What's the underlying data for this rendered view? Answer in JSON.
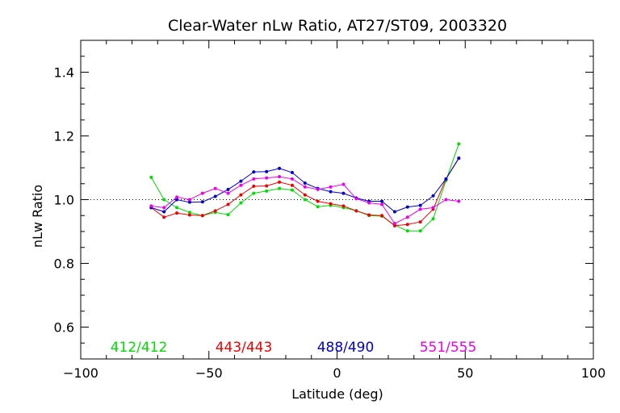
{
  "chart_data": {
    "type": "line",
    "title": "Clear-Water nLw Ratio, AT27/ST09, 2003320",
    "xlabel": "Latitude (deg)",
    "ylabel": "nLw Ratio",
    "xlim": [
      -100,
      100
    ],
    "ylim": [
      0.5,
      1.5
    ],
    "xticks": [
      -100,
      -50,
      0,
      50,
      100
    ],
    "xtick_labels": [
      "−100",
      "−50",
      "0",
      "50",
      "100"
    ],
    "yticks": [
      0.6,
      0.8,
      1.0,
      1.2,
      1.4
    ],
    "ytick_labels": [
      "0.6",
      "0.8",
      "1.0",
      "1.2",
      "1.4"
    ],
    "reference_line": 1.0,
    "grid": false,
    "legend_position": "bottom",
    "series": [
      {
        "name": "412/412",
        "color": "#00dd00",
        "x": [
          -72.5,
          -67.5,
          -62.5,
          -57.5,
          -52.5,
          -47.5,
          -42.5,
          -37.5,
          -32.5,
          -27.5,
          -22.5,
          -17.5,
          -12.5,
          -7.5,
          -2.5,
          2.5,
          7.5,
          12.5,
          17.5,
          22.5,
          27.5,
          32.5,
          37.5,
          42.5,
          47.5
        ],
        "y": [
          1.07,
          1.0,
          0.975,
          0.96,
          0.95,
          0.96,
          0.953,
          0.99,
          1.02,
          1.027,
          1.035,
          1.03,
          1.0,
          0.978,
          0.982,
          0.975,
          0.965,
          0.95,
          0.948,
          0.92,
          0.902,
          0.902,
          0.94,
          1.06,
          1.175
        ]
      },
      {
        "name": "443/443",
        "color": "#ee0000",
        "x": [
          -72.5,
          -67.5,
          -62.5,
          -57.5,
          -52.5,
          -47.5,
          -42.5,
          -37.5,
          -32.5,
          -27.5,
          -22.5,
          -17.5,
          -12.5,
          -7.5,
          -2.5,
          2.5,
          7.5,
          12.5,
          17.5,
          22.5,
          27.5,
          32.5,
          37.5,
          42.5,
          47.5
        ],
        "y": [
          0.975,
          0.945,
          0.958,
          0.952,
          0.95,
          0.965,
          0.985,
          1.015,
          1.042,
          1.043,
          1.055,
          1.045,
          1.015,
          0.995,
          0.987,
          0.98,
          0.965,
          0.952,
          0.95,
          0.918,
          0.922,
          0.93,
          0.97,
          1.065,
          1.13
        ]
      },
      {
        "name": "488/490",
        "color": "#0000cc",
        "x": [
          -72.5,
          -67.5,
          -62.5,
          -57.5,
          -52.5,
          -47.5,
          -42.5,
          -37.5,
          -32.5,
          -27.5,
          -22.5,
          -17.5,
          -12.5,
          -7.5,
          -2.5,
          2.5,
          7.5,
          12.5,
          17.5,
          22.5,
          27.5,
          32.5,
          37.5,
          42.5,
          47.5
        ],
        "y": [
          0.975,
          0.962,
          1.0,
          0.992,
          0.993,
          1.01,
          1.032,
          1.058,
          1.087,
          1.088,
          1.098,
          1.085,
          1.052,
          1.035,
          1.025,
          1.02,
          1.005,
          0.995,
          0.995,
          0.962,
          0.977,
          0.982,
          1.012,
          1.065,
          1.13
        ]
      },
      {
        "name": "551/555",
        "color": "#ee00ee",
        "x": [
          -72.5,
          -67.5,
          -62.5,
          -57.5,
          -52.5,
          -47.5,
          -42.5,
          -37.5,
          -32.5,
          -27.5,
          -22.5,
          -17.5,
          -12.5,
          -7.5,
          -2.5,
          2.5,
          7.5,
          12.5,
          17.5,
          22.5,
          27.5,
          32.5,
          37.5,
          42.5,
          47.5
        ],
        "y": [
          0.98,
          0.975,
          1.008,
          1.0,
          1.02,
          1.035,
          1.02,
          1.045,
          1.065,
          1.068,
          1.072,
          1.065,
          1.04,
          1.032,
          1.04,
          1.048,
          1.003,
          0.99,
          0.985,
          0.925,
          0.945,
          0.97,
          0.975,
          1.0,
          0.995
        ]
      }
    ]
  }
}
